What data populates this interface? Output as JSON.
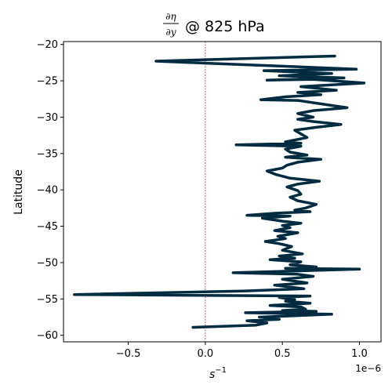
{
  "chart_data": {
    "type": "line",
    "title": {
      "numerator": "∂η",
      "denominator": "∂y",
      "suffix": "@ 825 hPa"
    },
    "xlabel": {
      "base": "s",
      "exponent": "−1"
    },
    "ylabel": "Latitude",
    "x_offset_label": "1e−6",
    "xlim": [
      -0.92,
      1.14
    ],
    "ylim": [
      -60.9,
      -19.6
    ],
    "x_ticks": [
      {
        "value": -0.5,
        "label": "−0.5"
      },
      {
        "value": 0.0,
        "label": "0.0"
      },
      {
        "value": 0.5,
        "label": "0.5"
      },
      {
        "value": 1.0,
        "label": "1.0"
      }
    ],
    "y_ticks": [
      {
        "value": -20,
        "label": "−20"
      },
      {
        "value": -25,
        "label": "−25"
      },
      {
        "value": -30,
        "label": "−30"
      },
      {
        "value": -35,
        "label": "−35"
      },
      {
        "value": -40,
        "label": "−40"
      },
      {
        "value": -45,
        "label": "−45"
      },
      {
        "value": -50,
        "label": "−50"
      },
      {
        "value": -55,
        "label": "−55"
      },
      {
        "value": -60,
        "label": "−60"
      }
    ],
    "reference_line": {
      "x": 0.0,
      "color": "#d62728",
      "style": "dashed"
    },
    "grid": false,
    "series": [
      {
        "color": "#002b40",
        "points": [
          [
            0.84,
            -21.6
          ],
          [
            -0.32,
            -22.3
          ],
          [
            0.98,
            -23.4
          ],
          [
            0.38,
            -23.6
          ],
          [
            0.82,
            -24.0
          ],
          [
            0.48,
            -24.3
          ],
          [
            0.9,
            -24.6
          ],
          [
            0.4,
            -24.9
          ],
          [
            0.7,
            -24.8
          ],
          [
            1.03,
            -25.3
          ],
          [
            0.62,
            -25.8
          ],
          [
            0.85,
            -26.3
          ],
          [
            0.6,
            -26.6
          ],
          [
            0.75,
            -26.9
          ],
          [
            0.52,
            -27.2
          ],
          [
            0.36,
            -27.6
          ],
          [
            0.6,
            -27.7
          ],
          [
            0.92,
            -28.7
          ],
          [
            0.7,
            -29.1
          ],
          [
            0.6,
            -29.5
          ],
          [
            0.7,
            -30.0
          ],
          [
            0.6,
            -30.3
          ],
          [
            0.7,
            -30.6
          ],
          [
            0.88,
            -31.0
          ],
          [
            0.72,
            -31.4
          ],
          [
            0.58,
            -31.8
          ],
          [
            0.62,
            -32.3
          ],
          [
            0.66,
            -32.8
          ],
          [
            0.52,
            -33.4
          ],
          [
            0.62,
            -33.6
          ],
          [
            0.2,
            -33.8
          ],
          [
            0.62,
            -34.0
          ],
          [
            0.52,
            -34.4
          ],
          [
            0.55,
            -34.8
          ],
          [
            0.66,
            -35.2
          ],
          [
            0.52,
            -35.5
          ],
          [
            0.75,
            -35.8
          ],
          [
            0.6,
            -36.2
          ],
          [
            0.53,
            -36.6
          ],
          [
            0.5,
            -37.0
          ],
          [
            0.4,
            -37.4
          ],
          [
            0.46,
            -37.9
          ],
          [
            0.55,
            -38.4
          ],
          [
            0.74,
            -38.8
          ],
          [
            0.6,
            -39.2
          ],
          [
            0.53,
            -39.6
          ],
          [
            0.6,
            -40.1
          ],
          [
            0.62,
            -40.6
          ],
          [
            0.55,
            -41.0
          ],
          [
            0.6,
            -41.5
          ],
          [
            0.72,
            -42.0
          ],
          [
            0.65,
            -42.5
          ],
          [
            0.58,
            -42.8
          ],
          [
            0.68,
            -43.0
          ],
          [
            0.46,
            -43.2
          ],
          [
            0.27,
            -43.5
          ],
          [
            0.55,
            -43.6
          ],
          [
            0.37,
            -43.9
          ],
          [
            0.5,
            -44.3
          ],
          [
            0.62,
            -44.6
          ],
          [
            0.5,
            -44.9
          ],
          [
            0.55,
            -45.2
          ],
          [
            0.45,
            -45.6
          ],
          [
            0.6,
            -45.9
          ],
          [
            0.47,
            -46.4
          ],
          [
            0.52,
            -46.7
          ],
          [
            0.39,
            -47.1
          ],
          [
            0.48,
            -47.4
          ],
          [
            0.56,
            -47.8
          ],
          [
            0.5,
            -48.3
          ],
          [
            0.63,
            -48.8
          ],
          [
            0.48,
            -49.1
          ],
          [
            0.58,
            -49.4
          ],
          [
            0.42,
            -49.6
          ],
          [
            0.62,
            -49.9
          ],
          [
            0.55,
            -50.3
          ],
          [
            0.72,
            -50.6
          ],
          [
            0.52,
            -50.8
          ],
          [
            1.0,
            -50.9
          ],
          [
            0.18,
            -51.4
          ],
          [
            0.6,
            -51.6
          ],
          [
            0.7,
            -51.9
          ],
          [
            0.5,
            -52.3
          ],
          [
            0.66,
            -52.8
          ],
          [
            0.45,
            -53.1
          ],
          [
            0.64,
            -53.6
          ],
          [
            0.26,
            -53.9
          ],
          [
            -0.85,
            -54.4
          ],
          [
            0.68,
            -54.6
          ],
          [
            0.48,
            -54.8
          ],
          [
            0.58,
            -55.1
          ],
          [
            0.52,
            -55.3
          ],
          [
            0.68,
            -55.6
          ],
          [
            0.42,
            -55.9
          ],
          [
            0.62,
            -56.1
          ],
          [
            0.65,
            -56.4
          ],
          [
            0.5,
            -56.6
          ],
          [
            0.72,
            -56.7
          ],
          [
            0.26,
            -56.9
          ],
          [
            0.82,
            -57.1
          ],
          [
            0.35,
            -57.5
          ],
          [
            0.48,
            -57.8
          ],
          [
            0.27,
            -58.0
          ],
          [
            0.4,
            -58.3
          ],
          [
            0.33,
            -58.6
          ],
          [
            -0.08,
            -58.9
          ]
        ]
      }
    ]
  }
}
